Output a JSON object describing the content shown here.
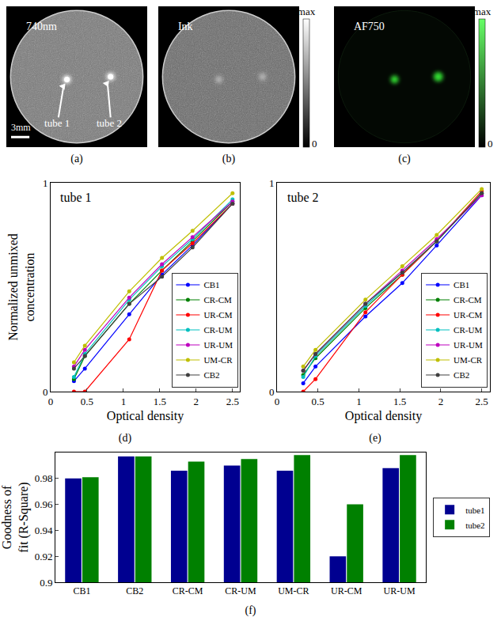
{
  "images": [
    {
      "label": "(a)",
      "text": "740nm",
      "color": "gray",
      "arrows": [
        "tube 1",
        "tube 2"
      ],
      "scale_bar": "3mm"
    },
    {
      "label": "(b)",
      "text": "Ink",
      "color": "gray",
      "colorbar": {
        "max": "max",
        "min": 0
      }
    },
    {
      "label": "(c)",
      "text": "AF750",
      "color": "green",
      "colorbar": {
        "max": "max",
        "min": 0
      }
    }
  ],
  "chart_data": [
    {
      "type": "line",
      "label": "(d)",
      "annotation": "tube 1",
      "x_label": "Optical density",
      "y_label": "Normalized unmixed concentration",
      "x": [
        0.32,
        0.47,
        1.08,
        1.53,
        1.95,
        2.5
      ],
      "xlim": [
        0,
        2.6
      ],
      "xticks": [
        0,
        0.5,
        1,
        1.5,
        2,
        2.5
      ],
      "ylim": [
        0,
        1
      ],
      "yticks": [
        0,
        1
      ],
      "grid": false,
      "legend": "bottom right",
      "marker": "circle",
      "series": [
        {
          "name": "CB1",
          "color": "#0000ff",
          "values": [
            0.05,
            0.11,
            0.37,
            0.56,
            0.7,
            0.9
          ]
        },
        {
          "name": "CR-CM",
          "color": "#008000",
          "values": [
            0.06,
            0.17,
            0.42,
            0.58,
            0.72,
            0.91
          ]
        },
        {
          "name": "UR-CM",
          "color": "#ff0000",
          "values": [
            0,
            0,
            0.25,
            0.58,
            0.71,
            0.9
          ]
        },
        {
          "name": "CR-UM",
          "color": "#00bfbf",
          "values": [
            0.07,
            0.18,
            0.44,
            0.6,
            0.73,
            0.92
          ]
        },
        {
          "name": "UR-UM",
          "color": "#bf00bf",
          "values": [
            0.12,
            0.2,
            0.45,
            0.61,
            0.74,
            0.91
          ]
        },
        {
          "name": "UM-CR",
          "color": "#bfbf00",
          "values": [
            0.14,
            0.22,
            0.48,
            0.64,
            0.77,
            0.95
          ]
        },
        {
          "name": "CB2",
          "color": "#404040",
          "values": [
            0.11,
            0.17,
            0.42,
            0.55,
            0.69,
            0.9
          ]
        }
      ]
    },
    {
      "type": "line",
      "label": "(e)",
      "annotation": "tube 2",
      "x_label": "Optical density",
      "x": [
        0.32,
        0.47,
        1.08,
        1.53,
        1.95,
        2.5
      ],
      "xlim": [
        0,
        2.6
      ],
      "xticks": [
        0,
        0.5,
        1,
        1.5,
        2,
        2.5
      ],
      "ylim": [
        0,
        1
      ],
      "yticks": [
        0,
        1
      ],
      "grid": false,
      "legend": "bottom right",
      "marker": "circle",
      "series": [
        {
          "name": "CB1",
          "color": "#0000ff",
          "values": [
            0.04,
            0.12,
            0.36,
            0.52,
            0.7,
            0.94
          ]
        },
        {
          "name": "CR-CM",
          "color": "#008000",
          "values": [
            0.08,
            0.16,
            0.4,
            0.56,
            0.72,
            0.95
          ]
        },
        {
          "name": "UR-CM",
          "color": "#ff0000",
          "values": [
            0,
            0.06,
            0.38,
            0.56,
            0.72,
            0.96
          ]
        },
        {
          "name": "CR-UM",
          "color": "#00bfbf",
          "values": [
            0.07,
            0.17,
            0.41,
            0.57,
            0.72,
            0.95
          ]
        },
        {
          "name": "UR-UM",
          "color": "#bf00bf",
          "values": [
            0.1,
            0.18,
            0.42,
            0.58,
            0.73,
            0.94
          ]
        },
        {
          "name": "UM-CR",
          "color": "#bfbf00",
          "values": [
            0.12,
            0.2,
            0.44,
            0.6,
            0.75,
            0.97
          ]
        },
        {
          "name": "CB2",
          "color": "#404040",
          "values": [
            0.1,
            0.18,
            0.42,
            0.57,
            0.72,
            0.95
          ]
        }
      ]
    },
    {
      "type": "bar",
      "label": "(f)",
      "y_label": "Goodness of fit (R-Square)",
      "categories": [
        "CB1",
        "CB2",
        "CR-CM",
        "CR-UM",
        "UM-CR",
        "UR-CM",
        "UR-UM"
      ],
      "ylim": [
        0.9,
        1
      ],
      "yticks": [
        0.9,
        0.92,
        0.94,
        0.96,
        0.98,
        1
      ],
      "grid": false,
      "legend": "right",
      "series": [
        {
          "name": "tube1",
          "color": "#000090",
          "values": [
            0.98,
            0.997,
            0.986,
            0.99,
            0.986,
            0.92,
            0.988
          ]
        },
        {
          "name": "tube2",
          "color": "#008000",
          "values": [
            0.981,
            0.997,
            0.993,
            0.995,
            0.998,
            0.96,
            0.998
          ]
        }
      ]
    }
  ]
}
